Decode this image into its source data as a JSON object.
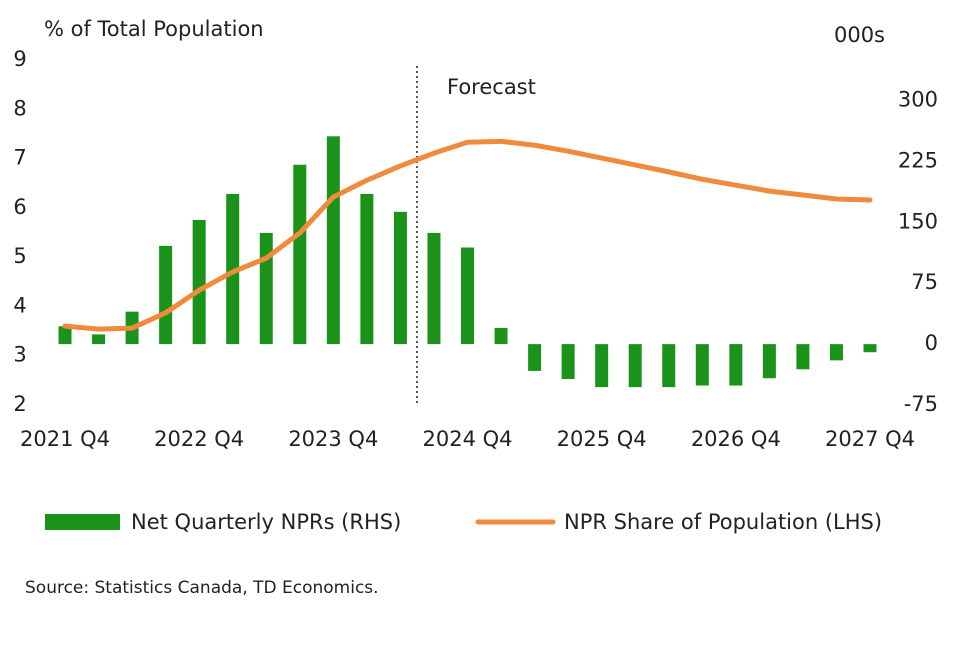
{
  "chart_data": {
    "type": "bar+line",
    "y_title": "% of Total Population",
    "y2_title": "000s",
    "annotation": "Forecast",
    "source": "Source: Statistics Canada, TD Economics.",
    "categories": [
      "2021 Q4",
      null,
      null,
      null,
      "2022 Q4",
      null,
      null,
      null,
      "2023 Q4",
      null,
      null,
      null,
      "2024 Q4",
      null,
      null,
      null,
      "2025 Q4",
      null,
      null,
      null,
      "2026 Q4",
      null,
      null,
      null,
      "2027 Q4"
    ],
    "series": [
      {
        "name": "Net Quarterly NPRs (RHS)",
        "type": "bar",
        "axis": "y2",
        "color": "#1b931b",
        "values": [
          22,
          12,
          40,
          121,
          153,
          185,
          137,
          221,
          256,
          185,
          163,
          137,
          119,
          20,
          -33,
          -43,
          -53,
          -53,
          -53,
          -51,
          -51,
          -42,
          -31,
          -20,
          -10
        ]
      },
      {
        "name": "NPR Share of Population (LHS)",
        "type": "line",
        "axis": "y",
        "color": "#f08a3c",
        "values": [
          3.6,
          3.54,
          3.56,
          3.87,
          4.33,
          4.7,
          4.98,
          5.49,
          6.22,
          6.56,
          6.85,
          7.11,
          7.33,
          7.35,
          7.27,
          7.15,
          7.01,
          6.87,
          6.73,
          6.58,
          6.46,
          6.34,
          6.26,
          6.18,
          6.16
        ]
      }
    ],
    "ylim": [
      2,
      9
    ],
    "yticks": [
      2,
      3,
      4,
      5,
      6,
      7,
      8,
      9
    ],
    "y2lim": [
      -75,
      350
    ],
    "y2ticks": [
      -75,
      0,
      75,
      150,
      225,
      300
    ],
    "grid": false
  }
}
